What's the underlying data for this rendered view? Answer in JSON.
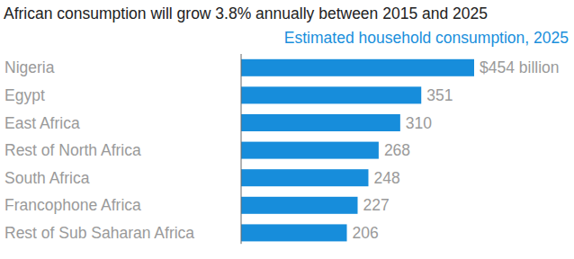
{
  "chart_data": {
    "type": "bar",
    "title": "African consumption will grow 3.8% annually between 2015 and 2025",
    "subtitle": "Estimated household consumption, 2025",
    "categories": [
      "Nigeria",
      "Egypt",
      "East Africa",
      "Rest of North Africa",
      "South Africa",
      "Francophone Africa",
      "Rest of Sub Saharan Africa"
    ],
    "values": [
      454,
      351,
      310,
      268,
      248,
      227,
      206
    ],
    "value_labels": [
      "$454 billion",
      "351",
      "310",
      "268",
      "248",
      "227",
      "206"
    ],
    "color": "#178ddb",
    "orientation": "horizontal",
    "data_labels": true,
    "tick_labels": false,
    "grid": false,
    "xlim": [
      0,
      454
    ]
  }
}
